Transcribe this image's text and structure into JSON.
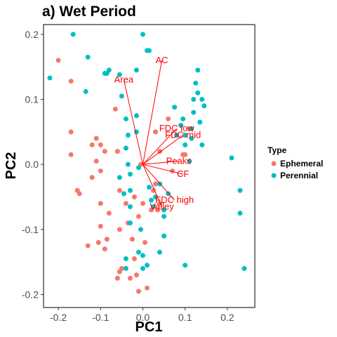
{
  "chart_data": {
    "type": "scatter",
    "title": "a) Wet Period",
    "xlabel": "PC1",
    "ylabel": "PC2",
    "xlim": [
      -0.235,
      0.265
    ],
    "ylim": [
      -0.22,
      0.215
    ],
    "xticks": [
      -0.2,
      -0.1,
      0.0,
      0.1,
      0.2
    ],
    "xtick_labels": [
      "-0.2",
      "-0.1",
      "0.0",
      "0.1",
      "0.2"
    ],
    "yticks": [
      -0.2,
      -0.1,
      0.0,
      0.1,
      0.2
    ],
    "ytick_labels": [
      "-0.2",
      "-0.1",
      "0.0",
      "0.1",
      "0.2"
    ],
    "grid": false,
    "legend": {
      "title": "Type",
      "placement": "right",
      "entries": [
        {
          "label": "Ephemeral",
          "color": "#f8766d"
        },
        {
          "label": "Perennial",
          "color": "#00bfc4"
        }
      ]
    },
    "series": [
      {
        "name": "Ephemeral",
        "color": "#f8766d",
        "points": [
          [
            -0.2,
            0.16
          ],
          [
            -0.17,
            0.128
          ],
          [
            -0.17,
            0.015
          ],
          [
            -0.155,
            -0.04
          ],
          [
            -0.15,
            -0.045
          ],
          [
            -0.13,
            -0.125
          ],
          [
            -0.12,
            -0.02
          ],
          [
            -0.11,
            0.04
          ],
          [
            -0.1,
            0.03
          ],
          [
            -0.11,
            0.005
          ],
          [
            -0.1,
            -0.01
          ],
          [
            -0.1,
            -0.06
          ],
          [
            -0.1,
            -0.095
          ],
          [
            -0.105,
            -0.12
          ],
          [
            -0.085,
            -0.115
          ],
          [
            -0.09,
            -0.13
          ],
          [
            -0.08,
            -0.075
          ],
          [
            -0.09,
            0.02
          ],
          [
            -0.065,
            0.085
          ],
          [
            -0.06,
            0.02
          ],
          [
            -0.055,
            -0.04
          ],
          [
            -0.055,
            -0.1
          ],
          [
            -0.05,
            -0.16
          ],
          [
            -0.055,
            -0.165
          ],
          [
            -0.06,
            -0.175
          ],
          [
            -0.04,
            -0.06
          ],
          [
            -0.035,
            -0.09
          ],
          [
            -0.03,
            -0.175
          ],
          [
            -0.025,
            -0.115
          ],
          [
            -0.02,
            -0.05
          ],
          [
            -0.02,
            -0.145
          ],
          [
            -0.015,
            -0.17
          ],
          [
            -0.01,
            -0.195
          ],
          [
            -0.01,
            -0.08
          ],
          [
            -0.005,
            0.0
          ],
          [
            0.0,
            -0.06
          ],
          [
            0.005,
            -0.12
          ],
          [
            0.01,
            -0.19
          ],
          [
            0.02,
            -0.07
          ],
          [
            0.025,
            -0.04
          ],
          [
            0.03,
            -0.03
          ],
          [
            0.04,
            -0.06
          ],
          [
            0.035,
            -0.07
          ],
          [
            0.03,
            0.05
          ],
          [
            0.04,
            0.02
          ],
          [
            0.06,
            0.07
          ],
          [
            0.07,
            -0.01
          ],
          [
            0.09,
            0.06
          ],
          [
            0.1,
            0.045
          ],
          [
            0.11,
            0.055
          ],
          [
            0.095,
            0.015
          ],
          [
            0.1,
            0.015
          ],
          [
            -0.17,
            0.05
          ],
          [
            -0.12,
            0.03
          ]
        ]
      },
      {
        "name": "Perennial",
        "color": "#00bfc4",
        "points": [
          [
            -0.22,
            0.133
          ],
          [
            -0.165,
            0.2
          ],
          [
            -0.13,
            0.165
          ],
          [
            -0.135,
            0.112
          ],
          [
            -0.085,
            0.14
          ],
          [
            -0.09,
            0.14
          ],
          [
            -0.08,
            0.145
          ],
          [
            -0.05,
            0.105
          ],
          [
            -0.055,
            0.138
          ],
          [
            -0.055,
            -0.02
          ],
          [
            -0.045,
            -0.045
          ],
          [
            -0.04,
            0.07
          ],
          [
            -0.04,
            0.025
          ],
          [
            -0.035,
            0.045
          ],
          [
            -0.03,
            -0.04
          ],
          [
            -0.03,
            -0.065
          ],
          [
            -0.03,
            -0.09
          ],
          [
            -0.035,
            0.0
          ],
          [
            -0.03,
            -0.015
          ],
          [
            -0.015,
            0.145
          ],
          [
            -0.015,
            0.075
          ],
          [
            -0.01,
            -0.005
          ],
          [
            -0.005,
            -0.1
          ],
          [
            0.0,
            0.2
          ],
          [
            0.01,
            0.175
          ],
          [
            0.015,
            0.175
          ],
          [
            0.015,
            -0.035
          ],
          [
            0.02,
            -0.055
          ],
          [
            0.025,
            -0.065
          ],
          [
            0.03,
            -0.05
          ],
          [
            0.04,
            -0.03
          ],
          [
            0.05,
            -0.07
          ],
          [
            0.05,
            -0.08
          ],
          [
            0.06,
            -0.045
          ],
          [
            0.075,
            0.088
          ],
          [
            0.08,
            0.045
          ],
          [
            0.09,
            0.06
          ],
          [
            0.095,
            0.07
          ],
          [
            0.1,
            0.03
          ],
          [
            0.11,
            0.005
          ],
          [
            0.115,
            0.04
          ],
          [
            0.12,
            0.08
          ],
          [
            0.125,
            0.125
          ],
          [
            0.13,
            0.145
          ],
          [
            0.14,
            0.1
          ],
          [
            0.145,
            0.09
          ],
          [
            0.115,
            0.055
          ],
          [
            0.1,
            0.045
          ],
          [
            0.13,
            0.11
          ],
          [
            0.135,
            0.065
          ],
          [
            0.14,
            0.03
          ],
          [
            0.21,
            0.01
          ],
          [
            0.23,
            -0.04
          ],
          [
            0.23,
            -0.075
          ],
          [
            0.24,
            -0.16
          ],
          [
            0.1,
            -0.155
          ],
          [
            0.05,
            -0.11
          ],
          [
            0.04,
            -0.135
          ],
          [
            -0.01,
            -0.135
          ],
          [
            0.0,
            -0.16
          ],
          [
            0.0,
            -0.14
          ],
          [
            -0.04,
            -0.16
          ],
          [
            -0.04,
            -0.145
          ],
          [
            0.01,
            -0.155
          ],
          [
            -0.015,
            0.05
          ],
          [
            0.12,
            0.1
          ]
        ]
      }
    ],
    "loadings": [
      {
        "label": "AC",
        "x": 0.045,
        "y": 0.16
      },
      {
        "label": "Area",
        "x": -0.045,
        "y": 0.13
      },
      {
        "label": "FDC low",
        "x": 0.08,
        "y": 0.055
      },
      {
        "label": "FDC mid",
        "x": 0.095,
        "y": 0.045
      },
      {
        "label": "Peaks",
        "x": 0.085,
        "y": 0.005
      },
      {
        "label": "CF",
        "x": 0.095,
        "y": -0.015
      },
      {
        "label": "FDC high",
        "x": 0.075,
        "y": -0.055
      },
      {
        "label": "Valley",
        "x": 0.045,
        "y": -0.065
      }
    ],
    "loading_color": "#ff0000"
  }
}
